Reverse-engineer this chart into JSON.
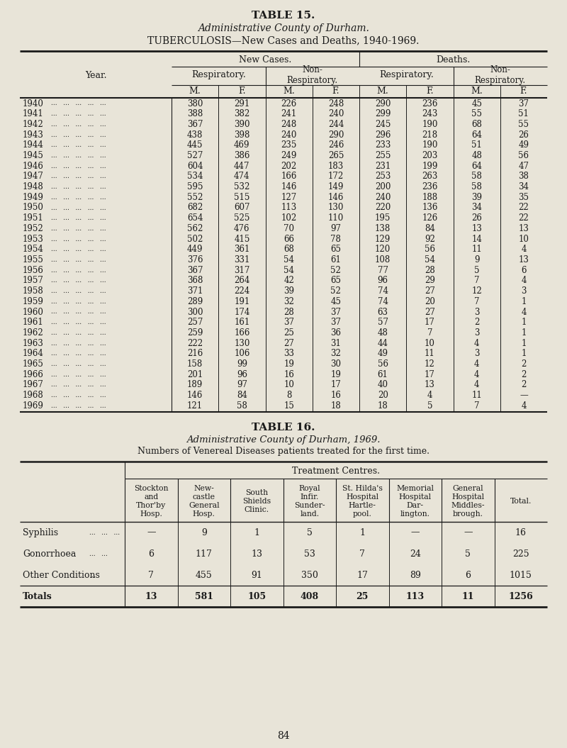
{
  "bg_color": "#e8e4d8",
  "title1": "TABLE 15.",
  "title2": "Administrative County of Durham.",
  "title3": "TUBERCULOSIS—New Cases and Deaths, 1940-1969.",
  "tb_data": [
    [
      1940,
      380,
      291,
      226,
      248,
      290,
      236,
      45,
      37
    ],
    [
      1941,
      388,
      382,
      241,
      240,
      299,
      243,
      55,
      51
    ],
    [
      1942,
      367,
      390,
      248,
      244,
      245,
      190,
      68,
      55
    ],
    [
      1943,
      438,
      398,
      240,
      290,
      296,
      218,
      64,
      26
    ],
    [
      1944,
      445,
      469,
      235,
      246,
      233,
      190,
      51,
      49
    ],
    [
      1945,
      527,
      386,
      249,
      265,
      255,
      203,
      48,
      56
    ],
    [
      1946,
      604,
      447,
      202,
      183,
      231,
      199,
      64,
      47
    ],
    [
      1947,
      534,
      474,
      166,
      172,
      253,
      263,
      58,
      38
    ],
    [
      1948,
      595,
      532,
      146,
      149,
      200,
      236,
      58,
      34
    ],
    [
      1949,
      552,
      515,
      127,
      146,
      240,
      188,
      39,
      35
    ],
    [
      1950,
      682,
      607,
      113,
      130,
      220,
      136,
      34,
      22
    ],
    [
      1951,
      654,
      525,
      102,
      110,
      195,
      126,
      26,
      22
    ],
    [
      1952,
      562,
      476,
      70,
      97,
      138,
      84,
      13,
      13
    ],
    [
      1953,
      502,
      415,
      66,
      78,
      129,
      92,
      14,
      10
    ],
    [
      1954,
      449,
      361,
      68,
      65,
      120,
      56,
      11,
      4
    ],
    [
      1955,
      376,
      331,
      54,
      61,
      108,
      54,
      9,
      13
    ],
    [
      1956,
      367,
      317,
      54,
      52,
      77,
      28,
      5,
      6
    ],
    [
      1957,
      368,
      264,
      42,
      65,
      96,
      29,
      7,
      4
    ],
    [
      1958,
      371,
      224,
      39,
      52,
      74,
      27,
      12,
      3
    ],
    [
      1959,
      289,
      191,
      32,
      45,
      74,
      20,
      7,
      1
    ],
    [
      1960,
      300,
      174,
      28,
      37,
      63,
      27,
      3,
      4
    ],
    [
      1961,
      257,
      161,
      37,
      37,
      57,
      17,
      2,
      1
    ],
    [
      1962,
      259,
      166,
      25,
      36,
      48,
      7,
      3,
      1
    ],
    [
      1963,
      222,
      130,
      27,
      31,
      44,
      10,
      4,
      1
    ],
    [
      1964,
      216,
      106,
      33,
      32,
      49,
      11,
      3,
      1
    ],
    [
      1965,
      158,
      99,
      19,
      30,
      56,
      12,
      4,
      2
    ],
    [
      1966,
      201,
      96,
      16,
      19,
      61,
      17,
      4,
      2
    ],
    [
      1967,
      189,
      97,
      10,
      17,
      40,
      13,
      4,
      2
    ],
    [
      1968,
      146,
      84,
      8,
      16,
      20,
      4,
      11,
      null
    ],
    [
      1969,
      121,
      58,
      15,
      18,
      18,
      5,
      7,
      4
    ]
  ],
  "table2_title1": "TABLE 16.",
  "table2_title2": "Administrative County of Durham, 1969.",
  "table2_title3": "Numbers of Venereal Diseases patients treated for the first time.",
  "table2_col_headers": [
    "Stockton\nand\nThor'by\nHosp.",
    "New-\ncastle\nGeneral\nHosp.",
    "South\nShields\nClinic.",
    "Royal\nInfir.\nSunder-\nland.",
    "St. Hilda's\nHospital\nHartle-\npool.",
    "Memorial\nHospital\nDar-\nlington.",
    "General\nHospital\nMiddles-\nbrough.",
    "Total."
  ],
  "table2_row_labels": [
    "Syphilis",
    "Gonorrhoea",
    "Other Conditions",
    "Totals"
  ],
  "table2_dots": [
    "...   ...   ...",
    "...   ...",
    "...",
    "...   ..."
  ],
  "table2_data": [
    [
      "—",
      "9",
      "1",
      "5",
      "1",
      "—",
      "—",
      "16"
    ],
    [
      "6",
      "117",
      "13",
      "53",
      "7",
      "24",
      "5",
      "225"
    ],
    [
      "7",
      "455",
      "91",
      "350",
      "17",
      "89",
      "6",
      "1015"
    ],
    [
      "13",
      "581",
      "105",
      "408",
      "25",
      "113",
      "11",
      "1256"
    ]
  ],
  "page_number": "84",
  "text_color": "#1a1a1a",
  "line_color": "#1a1a1a",
  "font_family": "serif"
}
